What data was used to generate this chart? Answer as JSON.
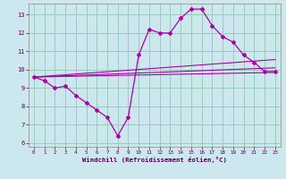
{
  "xlabel": "Windchill (Refroidissement éolien,°C)",
  "ylabel": "",
  "background_color": "#cce8ee",
  "line_color": "#aa00aa",
  "grid_color": "#99ccbb",
  "xlim": [
    -0.5,
    23.5
  ],
  "ylim": [
    5.8,
    13.6
  ],
  "yticks": [
    6,
    7,
    8,
    9,
    10,
    11,
    12,
    13
  ],
  "xticks": [
    0,
    1,
    2,
    3,
    4,
    5,
    6,
    7,
    8,
    9,
    10,
    11,
    12,
    13,
    14,
    15,
    16,
    17,
    18,
    19,
    20,
    21,
    22,
    23
  ],
  "line1_x": [
    0,
    1,
    2,
    3,
    4,
    5,
    6,
    7,
    8,
    9,
    10,
    11,
    12,
    13,
    14,
    15,
    16,
    17,
    18,
    19,
    20,
    21,
    22,
    23
  ],
  "line1_y": [
    9.6,
    9.4,
    9.0,
    9.1,
    8.6,
    8.2,
    7.8,
    7.4,
    6.4,
    7.4,
    10.8,
    12.2,
    12.0,
    12.0,
    12.8,
    13.3,
    13.3,
    12.4,
    11.8,
    11.5,
    10.8,
    10.4,
    9.9,
    9.9
  ],
  "line2_x": [
    0,
    23
  ],
  "line2_y": [
    9.6,
    9.85
  ],
  "line3_x": [
    0,
    23
  ],
  "line3_y": [
    9.6,
    10.1
  ],
  "line4_x": [
    0,
    23
  ],
  "line4_y": [
    9.6,
    10.55
  ]
}
